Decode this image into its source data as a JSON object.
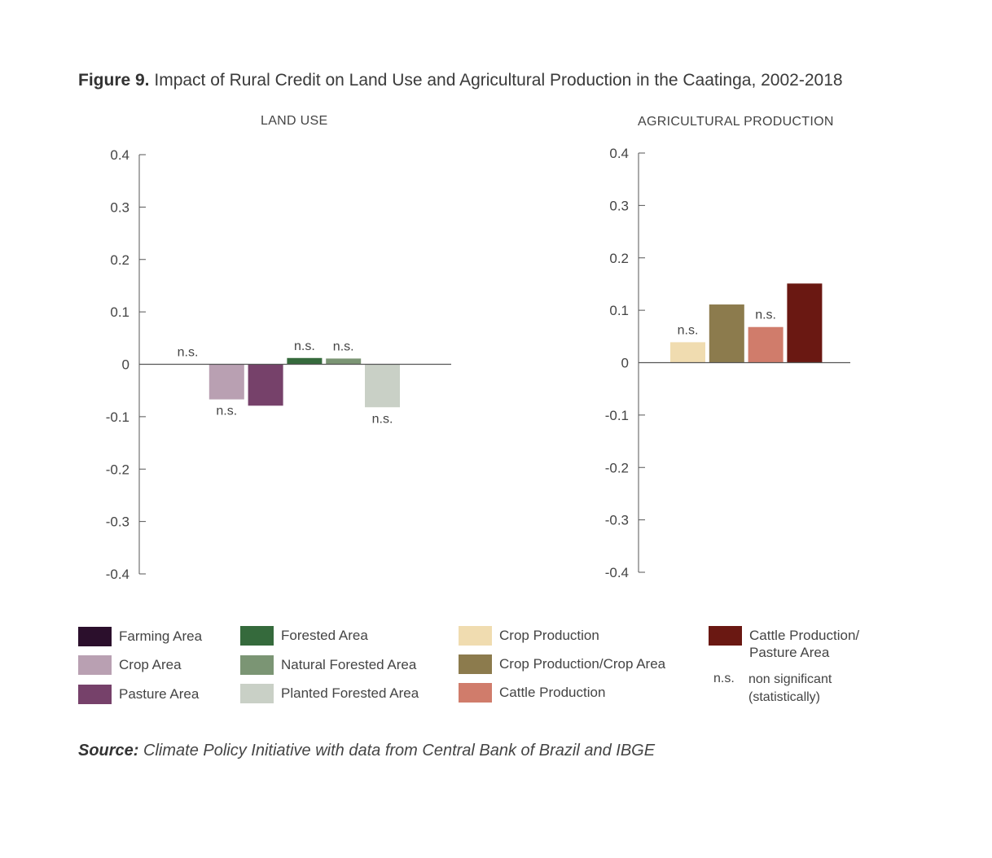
{
  "title": {
    "label": "Figure 9.",
    "text": "Impact of Rural Credit on Land Use and Agricultural Production in the Caatinga, 2002-2018"
  },
  "source": {
    "label": "Source:",
    "text": "Climate Policy Initiative with data from Central Bank of Brazil and IBGE"
  },
  "chart_data": [
    {
      "type": "bar",
      "title": "LAND USE",
      "ylim": [
        -0.4,
        0.4
      ],
      "yticks": [
        "0.4",
        "0.3",
        "0.2",
        "0.1",
        "0",
        "-0.1",
        "-0.2",
        "-0.3",
        "-0.4"
      ],
      "grid": false,
      "categories": [
        "Farming Area",
        "Crop Area",
        "Pasture Area",
        "Forested Area",
        "Natural Forested Area",
        "Planted Forested Area"
      ],
      "values": [
        0.0,
        -0.067,
        -0.079,
        0.012,
        0.011,
        -0.082
      ],
      "annotations": [
        "n.s.",
        "n.s.",
        "",
        "n.s.",
        "n.s.",
        "n.s."
      ],
      "colors": [
        "#2b0f2c",
        "#b9a0b2",
        "#76416a",
        "#356a3c",
        "#7b9574",
        "#c9d0c6"
      ]
    },
    {
      "type": "bar",
      "title": "AGRICULTURAL PRODUCTION",
      "ylim": [
        -0.4,
        0.4
      ],
      "yticks": [
        "0.4",
        "0.3",
        "0.2",
        "0.1",
        "0",
        "-0.1",
        "-0.2",
        "-0.3",
        "-0.4"
      ],
      "grid": false,
      "categories": [
        "Crop Production",
        "Crop Production/Crop Area",
        "Cattle Production",
        "Cattle Production/ Pasture Area"
      ],
      "values": [
        0.039,
        0.111,
        0.068,
        0.151
      ],
      "annotations": [
        "n.s.",
        "",
        "n.s.",
        ""
      ],
      "colors": [
        "#f0dcb0",
        "#8c7b4d",
        "#d07c6b",
        "#6a1812"
      ]
    }
  ],
  "legend": {
    "items": [
      {
        "label": "Farming Area",
        "color": "#2b0f2c"
      },
      {
        "label": "Crop Area",
        "color": "#b9a0b2"
      },
      {
        "label": "Pasture Area",
        "color": "#76416a"
      },
      {
        "label": "Forested Area",
        "color": "#356a3c"
      },
      {
        "label": "Natural Forested Area",
        "color": "#7b9574"
      },
      {
        "label": "Planted Forested Area",
        "color": "#c9d0c6"
      },
      {
        "label": "Crop Production",
        "color": "#f0dcb0"
      },
      {
        "label": "Crop Production/Crop Area",
        "color": "#8c7b4d"
      },
      {
        "label": "Cattle Production",
        "color": "#d07c6b"
      },
      {
        "label": "Cattle Production/ Pasture Area",
        "color": "#6a1812"
      }
    ],
    "ns_key": "n.s.",
    "ns_desc": "non significant (statistically)"
  }
}
